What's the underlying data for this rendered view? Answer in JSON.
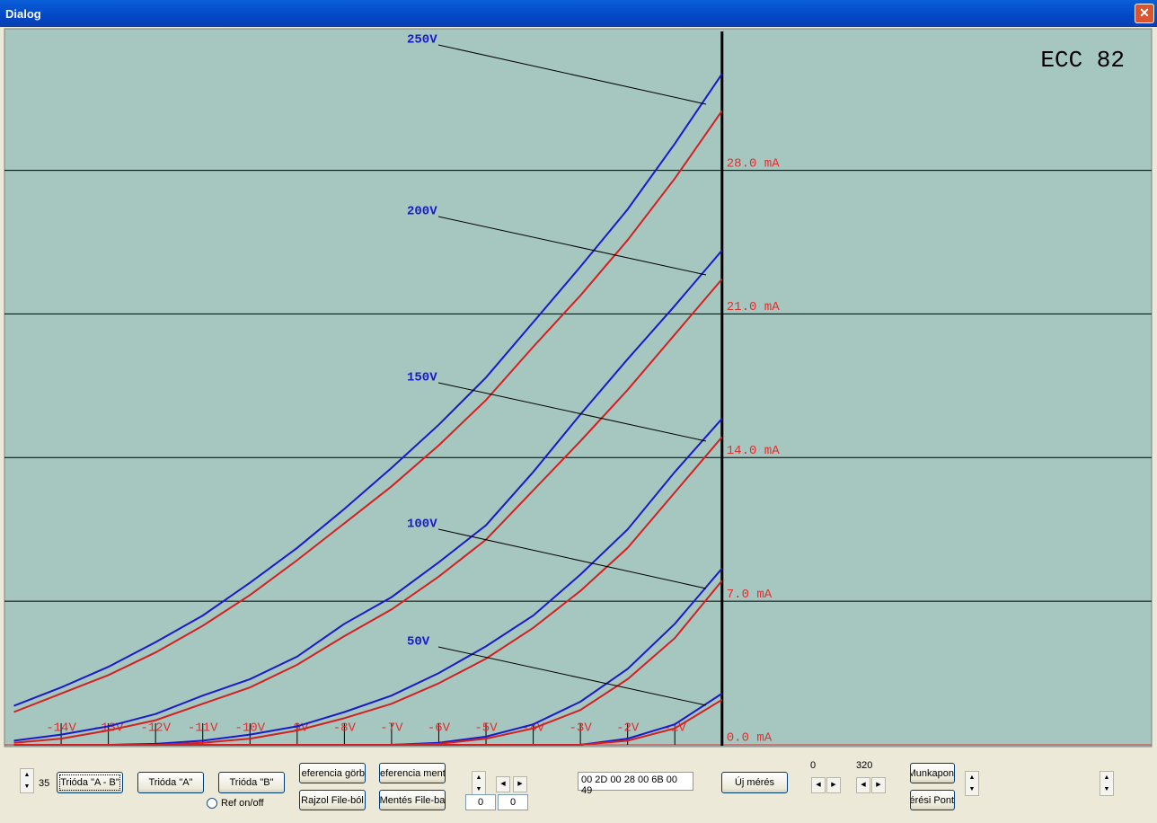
{
  "window": {
    "title": "Dialog"
  },
  "chart_data": {
    "type": "line",
    "title": "ECC 82",
    "x": [
      -15,
      -14,
      -13,
      -12,
      -11,
      -10,
      -9,
      -8,
      -7,
      -6,
      -5,
      -4,
      -3,
      -2,
      -1,
      0
    ],
    "xlim": [
      -15.2,
      9.1
    ],
    "ylim": [
      0,
      34.9
    ],
    "xticks": [
      {
        "value": -14,
        "label": "-14V"
      },
      {
        "value": -13,
        "label": "-13V"
      },
      {
        "value": -12,
        "label": "-12V"
      },
      {
        "value": -11,
        "label": "-11V"
      },
      {
        "value": -10,
        "label": "-10V"
      },
      {
        "value": -9,
        "label": "-9V"
      },
      {
        "value": -8,
        "label": "-8V"
      },
      {
        "value": -7,
        "label": "-7V"
      },
      {
        "value": -6,
        "label": "-6V"
      },
      {
        "value": -5,
        "label": "-5V"
      },
      {
        "value": -4,
        "label": "-4V"
      },
      {
        "value": -3,
        "label": "-3V"
      },
      {
        "value": -2,
        "label": "-2V"
      },
      {
        "value": -1,
        "label": "-1V"
      }
    ],
    "yticks": [
      {
        "value": 0,
        "label": "0.0 mA"
      },
      {
        "value": 7,
        "label": "7.0 mA"
      },
      {
        "value": 14,
        "label": "14.0 mA"
      },
      {
        "value": 21,
        "label": "21.0 mA"
      },
      {
        "value": 28,
        "label": "28.0 mA"
      }
    ],
    "grid": true,
    "background": "#a6c6c0",
    "tick_color": "#e03030",
    "annotations": [
      {
        "text": "250V"
      },
      {
        "text": "200V"
      },
      {
        "text": "150V"
      },
      {
        "text": "100V"
      },
      {
        "text": "50V"
      }
    ],
    "series": [
      {
        "color": "#1a1acc",
        "values": [
          1.9,
          2.8,
          3.8,
          5.0,
          6.3,
          7.9,
          9.6,
          11.5,
          13.5,
          15.6,
          17.9,
          20.6,
          23.3,
          26.1,
          29.3,
          32.7
        ]
      },
      {
        "color": "#d42020",
        "values": [
          1.6,
          2.5,
          3.4,
          4.5,
          5.8,
          7.3,
          9.0,
          10.8,
          12.6,
          14.6,
          16.8,
          19.4,
          21.9,
          24.6,
          27.6,
          30.9
        ]
      },
      {
        "color": "#1a1acc",
        "values": [
          0.2,
          0.5,
          0.9,
          1.5,
          2.4,
          3.2,
          4.3,
          5.9,
          7.2,
          8.9,
          10.7,
          13.3,
          16.1,
          18.8,
          21.4,
          24.1
        ]
      },
      {
        "color": "#d42020",
        "values": [
          0.1,
          0.3,
          0.7,
          1.2,
          2.0,
          2.8,
          3.9,
          5.3,
          6.6,
          8.2,
          10.0,
          12.4,
          14.8,
          17.3,
          20.0,
          22.7
        ]
      },
      {
        "color": "#1a1acc",
        "values": [
          0,
          0,
          0,
          0.05,
          0.2,
          0.5,
          0.9,
          1.6,
          2.4,
          3.5,
          4.8,
          6.3,
          8.3,
          10.5,
          13.3,
          15.9
        ]
      },
      {
        "color": "#d42020",
        "values": [
          0,
          0,
          0,
          0,
          0.1,
          0.3,
          0.7,
          1.3,
          2.0,
          3.0,
          4.2,
          5.7,
          7.5,
          9.6,
          12.3,
          15.0
        ]
      },
      {
        "color": "#1a1acc",
        "values": [
          0,
          0,
          0,
          0,
          0,
          0,
          0,
          0,
          0,
          0.1,
          0.4,
          1.0,
          2.1,
          3.7,
          5.9,
          8.6
        ]
      },
      {
        "color": "#d42020",
        "values": [
          0,
          0,
          0,
          0,
          0,
          0,
          0,
          0,
          0,
          0.05,
          0.3,
          0.8,
          1.7,
          3.2,
          5.2,
          8.0
        ]
      },
      {
        "color": "#1a1acc",
        "values": [
          0,
          0,
          0,
          0,
          0,
          0,
          0,
          0,
          0,
          0,
          0,
          0,
          0,
          0.3,
          1.0,
          2.5
        ]
      },
      {
        "color": "#d42020",
        "values": [
          0,
          0,
          0,
          0,
          0,
          0,
          0,
          0,
          0,
          0,
          0,
          0,
          0,
          0.2,
          0.8,
          2.2
        ]
      }
    ]
  },
  "controls": {
    "spin_value": "35",
    "buttons": [
      "Trióda \"A - B\"",
      "Trióda \"A\"",
      "Trióda \"B\"",
      "eferencia görb",
      "Rajzol File-ból",
      "eferencia ment",
      "Mentés File-ba",
      "Új mérés",
      "Munkapon",
      "érési Pont"
    ],
    "radio": "Ref on/off",
    "edits": [
      "0",
      "0"
    ],
    "hex": "00 2D 00 28 00 6B 00 49",
    "labels": [
      "0",
      "320"
    ]
  }
}
